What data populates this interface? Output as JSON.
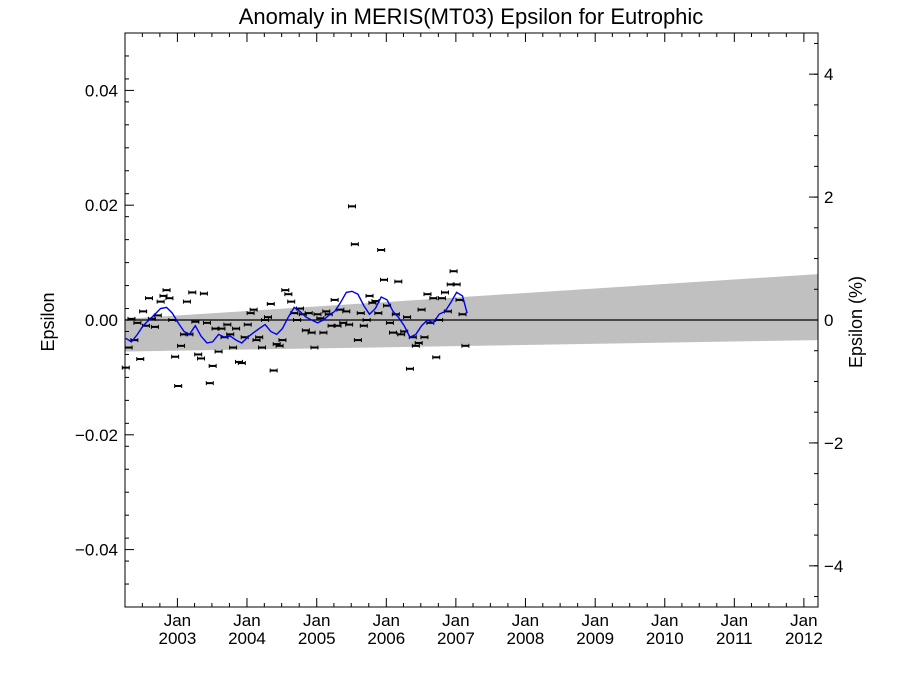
{
  "chart_data": {
    "type": "scatter",
    "title": "Anomaly in MERIS(MT03) Epsilon for Eutrophic",
    "ylabel": "Epsilon",
    "ylabel_right": "Epsilon (%)",
    "ylim": [
      -0.05,
      0.05
    ],
    "ylim_right": [
      -4.67,
      4.67
    ],
    "xlim": [
      "2002-04-01",
      "2012-03-15"
    ],
    "y_ticks": [
      0.04,
      0.02,
      0.0,
      -0.02,
      -0.04
    ],
    "y_tick_labels": [
      "0.04",
      "0.02",
      "0.00",
      "−0.02",
      "−0.04"
    ],
    "y_ticks_right": [
      4,
      2,
      0,
      -2,
      -4
    ],
    "y_tick_labels_right": [
      "4",
      "2",
      "0",
      "−2",
      "−4"
    ],
    "x_ticks": [
      {
        "date": "2003-01-01",
        "month": "Jan",
        "year": "2003"
      },
      {
        "date": "2004-01-01",
        "month": "Jan",
        "year": "2004"
      },
      {
        "date": "2005-01-01",
        "month": "Jan",
        "year": "2005"
      },
      {
        "date": "2006-01-01",
        "month": "Jan",
        "year": "2006"
      },
      {
        "date": "2007-01-01",
        "month": "Jan",
        "year": "2007"
      },
      {
        "date": "2008-01-01",
        "month": "Jan",
        "year": "2008"
      },
      {
        "date": "2009-01-01",
        "month": "Jan",
        "year": "2009"
      },
      {
        "date": "2010-01-01",
        "month": "Jan",
        "year": "2010"
      },
      {
        "date": "2011-01-01",
        "month": "Jan",
        "year": "2011"
      },
      {
        "date": "2012-01-01",
        "month": "Jan",
        "year": "2012"
      }
    ],
    "band": {
      "start": {
        "date": "2002-04-01",
        "lower": -0.0055,
        "upper": 0.0002
      },
      "end": {
        "date": "2012-03-15",
        "lower": -0.0035,
        "upper": 0.008
      }
    },
    "series": [
      {
        "kind": "points",
        "points": [
          [
            "2002-04-05",
            -0.0083
          ],
          [
            "2002-04-20",
            -0.0048
          ],
          [
            "2002-05-05",
            0.0002
          ],
          [
            "2002-05-20",
            -0.0035
          ],
          [
            "2002-06-05",
            -0.0005
          ],
          [
            "2002-06-20",
            -0.0068
          ],
          [
            "2002-07-05",
            0.0015
          ],
          [
            "2002-07-20",
            -0.001
          ],
          [
            "2002-08-05",
            0.0038
          ],
          [
            "2002-08-20",
            0.0002
          ],
          [
            "2002-09-05",
            -0.0012
          ],
          [
            "2002-09-20",
            0.0008
          ],
          [
            "2002-10-05",
            0.0032
          ],
          [
            "2002-10-20",
            0.0042
          ],
          [
            "2002-11-05",
            0.0052
          ],
          [
            "2002-11-20",
            0.0038
          ],
          [
            "2002-12-05",
            0.0
          ],
          [
            "2002-12-20",
            -0.0064
          ],
          [
            "2003-01-05",
            -0.0115
          ],
          [
            "2003-01-20",
            -0.0045
          ],
          [
            "2003-02-05",
            -0.0025
          ],
          [
            "2003-02-20",
            0.0032
          ],
          [
            "2003-03-05",
            -0.0025
          ],
          [
            "2003-03-20",
            0.0048
          ],
          [
            "2003-04-05",
            -0.0003
          ],
          [
            "2003-04-20",
            -0.006
          ],
          [
            "2003-05-05",
            -0.0067
          ],
          [
            "2003-05-20",
            0.0046
          ],
          [
            "2003-06-05",
            -0.0005
          ],
          [
            "2003-06-20",
            -0.011
          ],
          [
            "2003-07-05",
            -0.008
          ],
          [
            "2003-07-20",
            -0.0015
          ],
          [
            "2003-08-05",
            -0.0055
          ],
          [
            "2003-08-20",
            -0.0015
          ],
          [
            "2003-09-05",
            -0.003
          ],
          [
            "2003-09-20",
            -0.0008
          ],
          [
            "2003-10-05",
            -0.0025
          ],
          [
            "2003-10-20",
            -0.0048
          ],
          [
            "2003-11-05",
            -0.0015
          ],
          [
            "2003-11-20",
            -0.0073
          ],
          [
            "2003-12-05",
            -0.0075
          ],
          [
            "2003-12-20",
            -0.003
          ],
          [
            "2004-01-05",
            -0.0008
          ],
          [
            "2004-01-20",
            0.0012
          ],
          [
            "2004-02-05",
            0.0018
          ],
          [
            "2004-02-20",
            -0.0035
          ],
          [
            "2004-03-05",
            -0.003
          ],
          [
            "2004-03-20",
            -0.0048
          ],
          [
            "2004-04-05",
            0.0
          ],
          [
            "2004-04-20",
            0.0005
          ],
          [
            "2004-05-05",
            0.0028
          ],
          [
            "2004-05-20",
            -0.0088
          ],
          [
            "2004-06-05",
            -0.0042
          ],
          [
            "2004-06-20",
            -0.0045
          ],
          [
            "2004-07-05",
            -0.0035
          ],
          [
            "2004-07-20",
            0.0052
          ],
          [
            "2004-08-05",
            0.0045
          ],
          [
            "2004-08-20",
            0.0032
          ],
          [
            "2004-09-05",
            0.0012
          ],
          [
            "2004-09-20",
            0.0
          ],
          [
            "2004-10-05",
            0.002
          ],
          [
            "2004-10-20",
            0.001
          ],
          [
            "2004-11-05",
            -0.0018
          ],
          [
            "2004-11-20",
            0.0012
          ],
          [
            "2004-12-05",
            -0.0022
          ],
          [
            "2004-12-20",
            -0.0048
          ],
          [
            "2005-01-05",
            0.001
          ],
          [
            "2005-01-20",
            0.0003
          ],
          [
            "2005-02-05",
            -0.0022
          ],
          [
            "2005-02-20",
            0.0015
          ],
          [
            "2005-03-05",
            0.001
          ],
          [
            "2005-03-20",
            -0.001
          ],
          [
            "2005-04-05",
            0.0035
          ],
          [
            "2005-04-20",
            -0.001
          ],
          [
            "2005-05-05",
            0.0018
          ],
          [
            "2005-05-20",
            -0.0005
          ],
          [
            "2005-06-05",
            0.0015
          ],
          [
            "2005-06-20",
            -0.0008
          ],
          [
            "2005-07-05",
            0.0198
          ],
          [
            "2005-07-20",
            0.0132
          ],
          [
            "2005-08-05",
            -0.0035
          ],
          [
            "2005-08-20",
            0.0012
          ],
          [
            "2005-09-05",
            -0.001
          ],
          [
            "2005-09-20",
            0.0
          ],
          [
            "2005-10-05",
            0.0042
          ],
          [
            "2005-10-20",
            0.003
          ],
          [
            "2005-11-05",
            0.0033
          ],
          [
            "2005-11-20",
            0.0012
          ],
          [
            "2005-12-05",
            0.0122
          ],
          [
            "2005-12-20",
            0.007
          ],
          [
            "2006-01-05",
            0.0025
          ],
          [
            "2006-01-20",
            -0.0005
          ],
          [
            "2006-02-05",
            -0.0022
          ],
          [
            "2006-02-20",
            0.001
          ],
          [
            "2006-03-05",
            0.0067
          ],
          [
            "2006-03-20",
            -0.0025
          ],
          [
            "2006-04-05",
            -0.002
          ],
          [
            "2006-04-20",
            0.0005
          ],
          [
            "2006-05-05",
            -0.0085
          ],
          [
            "2006-05-20",
            -0.003
          ],
          [
            "2006-06-05",
            -0.0045
          ],
          [
            "2006-06-20",
            -0.004
          ],
          [
            "2006-07-05",
            0.0018
          ],
          [
            "2006-07-20",
            -0.003
          ],
          [
            "2006-08-05",
            0.0045
          ],
          [
            "2006-08-20",
            -0.0005
          ],
          [
            "2006-09-05",
            0.0038
          ],
          [
            "2006-09-20",
            -0.0065
          ],
          [
            "2006-10-05",
            0.0
          ],
          [
            "2006-10-20",
            0.0038
          ],
          [
            "2006-11-05",
            0.0048
          ],
          [
            "2006-11-20",
            0.0015
          ],
          [
            "2006-12-05",
            0.0062
          ],
          [
            "2006-12-20",
            0.0085
          ],
          [
            "2007-01-05",
            0.0062
          ],
          [
            "2007-01-20",
            0.0035
          ],
          [
            "2007-02-05",
            0.001
          ],
          [
            "2007-02-20",
            -0.0045
          ]
        ]
      },
      {
        "kind": "line",
        "color": "#0000ee",
        "points": [
          [
            "2002-04-05",
            -0.0032
          ],
          [
            "2002-05-05",
            -0.0038
          ],
          [
            "2002-06-05",
            -0.0025
          ],
          [
            "2002-07-05",
            -0.001
          ],
          [
            "2002-08-05",
            0.0
          ],
          [
            "2002-09-05",
            0.001
          ],
          [
            "2002-10-05",
            0.002
          ],
          [
            "2002-11-05",
            0.0022
          ],
          [
            "2002-12-05",
            0.0012
          ],
          [
            "2003-01-05",
            -0.0005
          ],
          [
            "2003-02-05",
            -0.002
          ],
          [
            "2003-03-05",
            -0.0025
          ],
          [
            "2003-04-05",
            -0.001
          ],
          [
            "2003-05-05",
            -0.0028
          ],
          [
            "2003-06-05",
            -0.004
          ],
          [
            "2003-07-05",
            -0.0038
          ],
          [
            "2003-08-05",
            -0.0025
          ],
          [
            "2003-09-05",
            -0.003
          ],
          [
            "2003-10-05",
            -0.0028
          ],
          [
            "2003-11-05",
            -0.0035
          ],
          [
            "2003-12-05",
            -0.004
          ],
          [
            "2004-01-05",
            -0.003
          ],
          [
            "2004-02-05",
            -0.0022
          ],
          [
            "2004-03-05",
            -0.0015
          ],
          [
            "2004-04-05",
            -0.0008
          ],
          [
            "2004-05-05",
            -0.002
          ],
          [
            "2004-06-05",
            -0.0025
          ],
          [
            "2004-07-05",
            -0.0015
          ],
          [
            "2004-08-05",
            0.0005
          ],
          [
            "2004-09-05",
            0.0022
          ],
          [
            "2004-10-05",
            0.0015
          ],
          [
            "2004-11-05",
            0.0005
          ],
          [
            "2004-12-05",
            0.0
          ],
          [
            "2005-01-05",
            -0.0005
          ],
          [
            "2005-02-05",
            0.0
          ],
          [
            "2005-03-05",
            0.0008
          ],
          [
            "2005-04-05",
            0.0015
          ],
          [
            "2005-05-05",
            0.003
          ],
          [
            "2005-06-05",
            0.0048
          ],
          [
            "2005-07-05",
            0.005
          ],
          [
            "2005-08-05",
            0.0045
          ],
          [
            "2005-09-05",
            0.0025
          ],
          [
            "2005-10-05",
            0.001
          ],
          [
            "2005-11-05",
            0.002
          ],
          [
            "2005-12-05",
            0.004
          ],
          [
            "2006-01-05",
            0.0035
          ],
          [
            "2006-02-05",
            0.0015
          ],
          [
            "2006-03-05",
            0.0005
          ],
          [
            "2006-04-05",
            -0.001
          ],
          [
            "2006-05-05",
            -0.003
          ],
          [
            "2006-06-05",
            -0.0025
          ],
          [
            "2006-07-05",
            -0.001
          ],
          [
            "2006-08-05",
            0.0
          ],
          [
            "2006-09-05",
            -0.0005
          ],
          [
            "2006-10-05",
            0.001
          ],
          [
            "2006-11-05",
            0.0015
          ],
          [
            "2006-12-05",
            0.003
          ],
          [
            "2007-01-05",
            0.0048
          ],
          [
            "2007-02-05",
            0.0042
          ],
          [
            "2007-03-01",
            0.0012
          ]
        ]
      }
    ]
  }
}
